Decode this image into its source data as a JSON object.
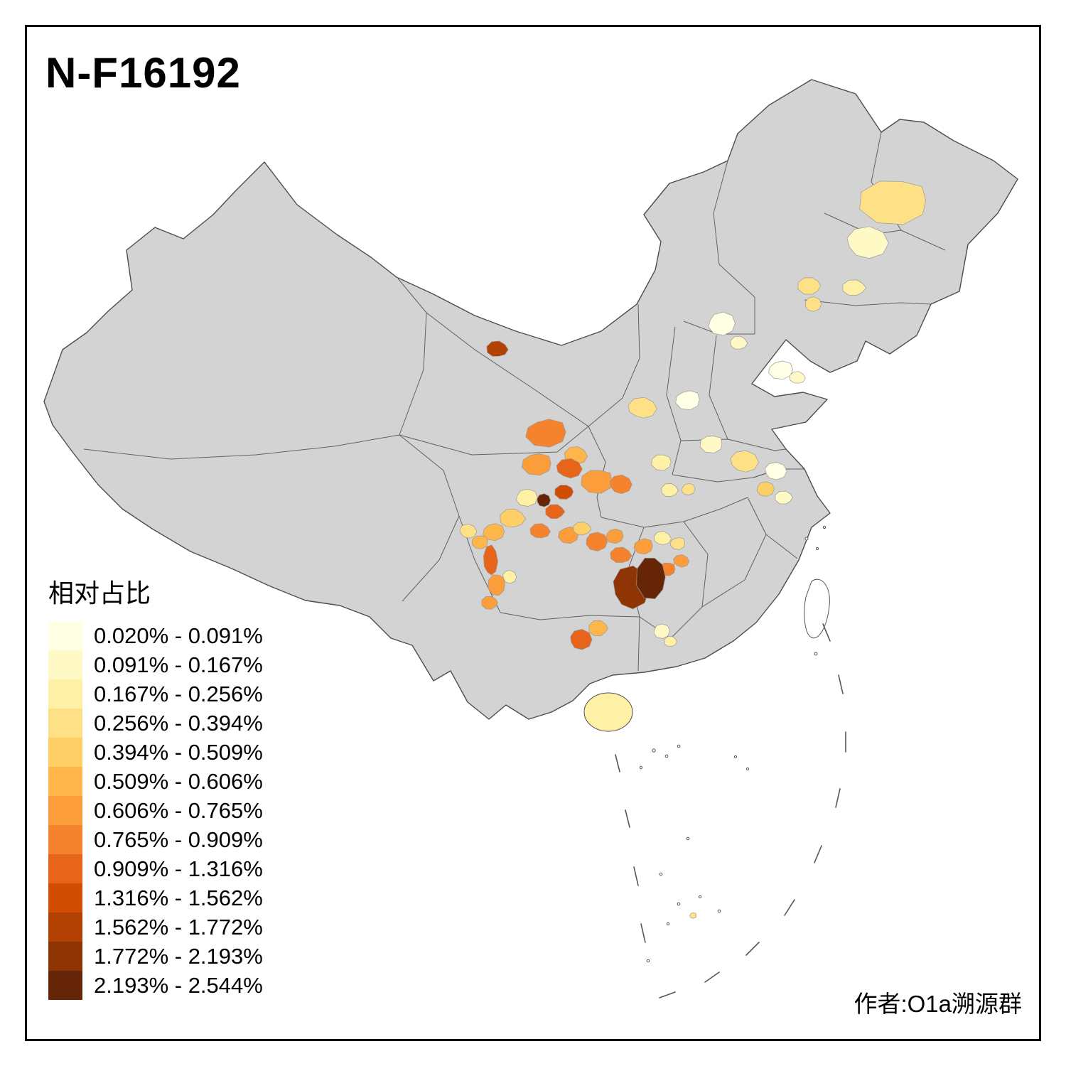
{
  "title": "N-F16192",
  "legend": {
    "title": "相对占比",
    "items": [
      {
        "range": "0.020% - 0.091%",
        "color": "#FFFFE5"
      },
      {
        "range": "0.091% - 0.167%",
        "color": "#FFF9C6"
      },
      {
        "range": "0.167% - 0.256%",
        "color": "#FEF0A5"
      },
      {
        "range": "0.256% - 0.394%",
        "color": "#FEE187"
      },
      {
        "range": "0.394% - 0.509%",
        "color": "#FECF66"
      },
      {
        "range": "0.509% - 0.606%",
        "color": "#FEB64A"
      },
      {
        "range": "0.606% - 0.765%",
        "color": "#FB9D3B"
      },
      {
        "range": "0.765% - 0.909%",
        "color": "#F5822D"
      },
      {
        "range": "0.909% - 1.316%",
        "color": "#E7651A"
      },
      {
        "range": "1.316% - 1.562%",
        "color": "#D14D04"
      },
      {
        "range": "1.562% - 1.772%",
        "color": "#B34103"
      },
      {
        "range": "1.772% - 2.193%",
        "color": "#8F3404"
      },
      {
        "range": "2.193% - 2.544%",
        "color": "#662506"
      }
    ]
  },
  "author": "作者:O1a溯源群",
  "map": {
    "land_color": "#D3D3D3",
    "border_color": "#4D4D4D",
    "island_stroke_color": "#555555",
    "region_stroke_color": "#9A9A9A",
    "background_color": "#FFFFFF"
  }
}
